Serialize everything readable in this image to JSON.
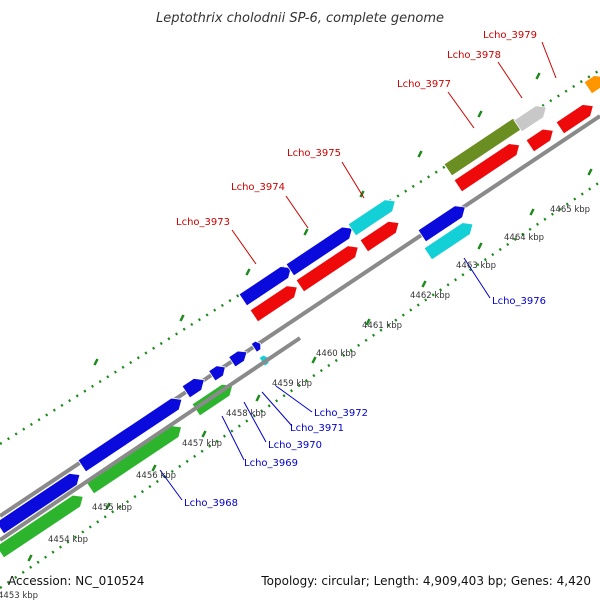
{
  "title": "Leptothrix cholodnii SP-6, complete genome",
  "footer": {
    "accession": "Accession: NC_010524",
    "summary": "Topology: circular; Length: 4,909,403 bp; Genes: 4,420"
  },
  "colors": {
    "backbone": "#8a8a8a",
    "tick": "#1c8a1c",
    "label_top": "#cc0000",
    "label_bottom": "#0000cc",
    "blue_gene": "#0a0adc",
    "red_gene": "#ee0a0a",
    "green_gene": "#2cb52c",
    "cyan_gene": "#13d0d6",
    "olive_gene": "#6b8e23",
    "gray_gene": "#c8c8c8",
    "orange_gene": "#ff9600"
  },
  "kbp_labels": [
    "4453 kbp",
    "4454 kbp",
    "4455 kbp",
    "4456 kbp",
    "4457 kbp",
    "4458 kbp",
    "4459 kbp",
    "4460 kbp",
    "4461 kbp",
    "4462 kbp",
    "4463 kbp",
    "4464 kbp",
    "4465 kbp"
  ],
  "gene_labels_top": [
    "Lcho_3973",
    "Lcho_3974",
    "Lcho_3975",
    "Lcho_3977",
    "Lcho_3978",
    "Lcho_3979"
  ],
  "gene_labels_bottom": [
    "Lcho_3968",
    "Lcho_3969",
    "Lcho_3970",
    "Lcho_3971",
    "Lcho_3972",
    "Lcho_3976"
  ]
}
